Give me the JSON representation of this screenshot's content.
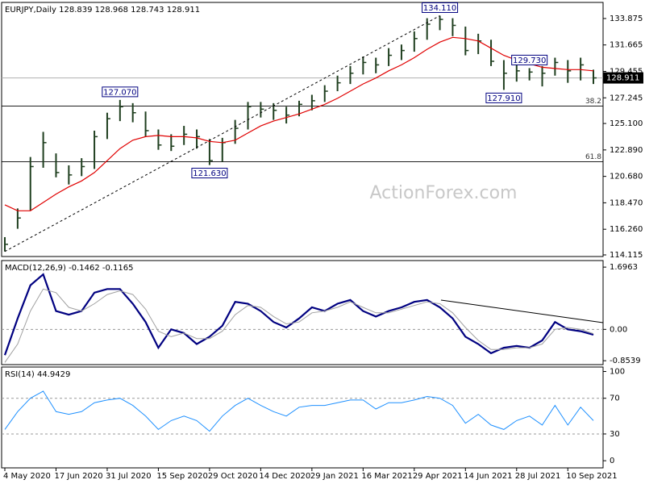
{
  "chart_data": [
    {
      "type": "hlc",
      "title": "EURJPY,Daily 128.839 128.968 128.743 128.911",
      "watermark": "ActionForex.com",
      "categories": [
        "4 May 2020",
        null,
        null,
        null,
        "17 Jun 2020",
        null,
        null,
        null,
        "31 Jul 2020",
        null,
        null,
        null,
        "15 Sep 2020",
        null,
        null,
        null,
        "29 Oct 2020",
        null,
        null,
        null,
        "14 Dec 2020",
        null,
        null,
        null,
        "29 Jan 2021",
        null,
        null,
        null,
        "16 Mar 2021",
        null,
        null,
        null,
        "29 Apr 2021",
        null,
        null,
        null,
        "14 Jun 2021",
        null,
        null,
        null,
        "28 Jul 2021",
        null,
        null,
        null,
        "10 Sep 2021",
        null,
        null
      ],
      "high": [
        115.6,
        118.0,
        122.3,
        124.4,
        122.6,
        121.6,
        122.2,
        124.5,
        126.0,
        127.07,
        126.8,
        126.1,
        124.6,
        124.2,
        124.9,
        124.6,
        123.8,
        123.9,
        125.4,
        126.9,
        126.9,
        126.8,
        126.5,
        127.0,
        127.5,
        128.3,
        129.1,
        129.9,
        130.7,
        130.6,
        131.4,
        131.7,
        132.8,
        133.9,
        134.11,
        133.9,
        133.2,
        132.6,
        132.1,
        130.4,
        130.1,
        129.73,
        129.9,
        130.6,
        130.4,
        130.6,
        129.6
      ],
      "low": [
        114.4,
        116.3,
        117.8,
        121.4,
        120.6,
        120.0,
        120.7,
        121.3,
        123.8,
        125.3,
        125.2,
        124.0,
        122.9,
        122.8,
        123.3,
        123.0,
        121.63,
        121.9,
        123.4,
        124.6,
        125.6,
        125.4,
        125.1,
        125.7,
        126.2,
        126.9,
        127.8,
        128.4,
        129.2,
        129.3,
        129.9,
        130.4,
        131.1,
        132.1,
        132.9,
        132.4,
        130.8,
        130.9,
        129.9,
        127.91,
        128.6,
        128.7,
        128.2,
        129.1,
        128.5,
        128.7,
        128.4
      ],
      "close": [
        115.0,
        117.2,
        121.5,
        123.5,
        121.0,
        120.8,
        121.5,
        124.0,
        125.5,
        126.5,
        126.0,
        124.5,
        123.3,
        123.2,
        124.2,
        124.0,
        122.0,
        123.5,
        124.7,
        126.5,
        126.3,
        126.2,
        125.8,
        126.7,
        127.0,
        127.8,
        128.5,
        129.3,
        130.2,
        130.0,
        130.8,
        131.2,
        132.2,
        133.4,
        133.8,
        133.3,
        131.2,
        132.0,
        130.3,
        129.3,
        129.5,
        129.4,
        129.3,
        130.2,
        129.5,
        130.0,
        128.911
      ],
      "color": "#1f3f1f",
      "ma": {
        "color": "#e00000",
        "values": [
          118.3,
          117.8,
          117.8,
          118.5,
          119.2,
          119.8,
          120.3,
          121.0,
          122.0,
          123.0,
          123.7,
          124.0,
          124.1,
          124.0,
          124.0,
          123.9,
          123.6,
          123.5,
          123.7,
          124.3,
          124.9,
          125.3,
          125.6,
          125.9,
          126.3,
          126.7,
          127.2,
          127.8,
          128.4,
          128.9,
          129.5,
          130.0,
          130.6,
          131.3,
          131.9,
          132.3,
          132.2,
          132.0,
          131.4,
          130.8,
          130.4,
          130.1,
          129.8,
          129.7,
          129.6,
          129.6,
          129.5
        ]
      },
      "last": 128.911,
      "annotations": [
        {
          "value": 134.11,
          "label": "134.110"
        },
        {
          "value": 127.07,
          "label": "127.070"
        },
        {
          "value": 121.63,
          "label": "121.630"
        },
        {
          "value": 129.73,
          "label": "129.730"
        },
        {
          "value": 127.91,
          "label": "127.910"
        }
      ],
      "levels": [
        {
          "name": "38.2",
          "value": 126.55
        },
        {
          "name": "61.8",
          "value": 121.9
        }
      ],
      "ylim": [
        113.98,
        135.22
      ],
      "yticks": [
        114.115,
        {
          "value": 116.26,
          "label": "116.260"
        },
        {
          "value": 118.47,
          "label": "118.470"
        },
        {
          "value": 120.68,
          "label": "120.680"
        },
        {
          "value": 122.89,
          "label": "122.890"
        },
        {
          "value": 125.1,
          "label": "125.100"
        },
        127.245,
        129.455,
        131.665,
        133.875
      ]
    },
    {
      "type": "line",
      "title": "MACD(12,26,9) -0.1462 -0.1165",
      "series": [
        {
          "color": "#000080",
          "values": [
            -0.7,
            0.3,
            1.2,
            1.5,
            0.5,
            0.4,
            0.5,
            1.0,
            1.1,
            1.1,
            0.7,
            0.2,
            -0.5,
            0.0,
            -0.1,
            -0.4,
            -0.2,
            0.1,
            0.75,
            0.7,
            0.5,
            0.2,
            0.05,
            0.3,
            0.6,
            0.5,
            0.7,
            0.8,
            0.5,
            0.35,
            0.5,
            0.6,
            0.75,
            0.8,
            0.6,
            0.3,
            -0.2,
            -0.4,
            -0.65,
            -0.5,
            -0.45,
            -0.5,
            -0.3,
            0.2,
            0.0,
            -0.05,
            -0.1462
          ]
        },
        {
          "color": "#a0a0a0",
          "values": [
            -0.9,
            -0.4,
            0.5,
            1.1,
            1.0,
            0.6,
            0.5,
            0.7,
            0.95,
            1.05,
            0.95,
            0.55,
            -0.05,
            -0.2,
            -0.1,
            -0.25,
            -0.25,
            -0.05,
            0.4,
            0.65,
            0.6,
            0.35,
            0.15,
            0.2,
            0.45,
            0.5,
            0.6,
            0.75,
            0.6,
            0.45,
            0.45,
            0.55,
            0.65,
            0.75,
            0.7,
            0.45,
            0.05,
            -0.3,
            -0.55,
            -0.55,
            -0.5,
            -0.5,
            -0.4,
            0.0,
            0.05,
            0.0,
            -0.1165
          ]
        }
      ],
      "ylim": [
        -0.96,
        1.875
      ],
      "yticks": [
        -0.8539,
        {
          "value": 0,
          "label": "0.00"
        },
        1.6963
      ]
    },
    {
      "type": "line",
      "title": "RSI(14) 44.9429",
      "series": [
        {
          "color": "#1e90ff",
          "values": [
            35,
            55,
            70,
            78,
            55,
            52,
            55,
            65,
            68,
            70,
            62,
            50,
            35,
            45,
            50,
            45,
            33,
            50,
            62,
            70,
            62,
            55,
            50,
            60,
            62,
            62,
            65,
            68,
            68,
            58,
            65,
            65,
            68,
            72,
            70,
            62,
            42,
            52,
            40,
            35,
            45,
            50,
            40,
            62,
            40,
            60,
            44.9429
          ]
        }
      ],
      "ylim": [
        -8,
        105
      ],
      "yticks": [
        0,
        30,
        70,
        100
      ]
    }
  ]
}
